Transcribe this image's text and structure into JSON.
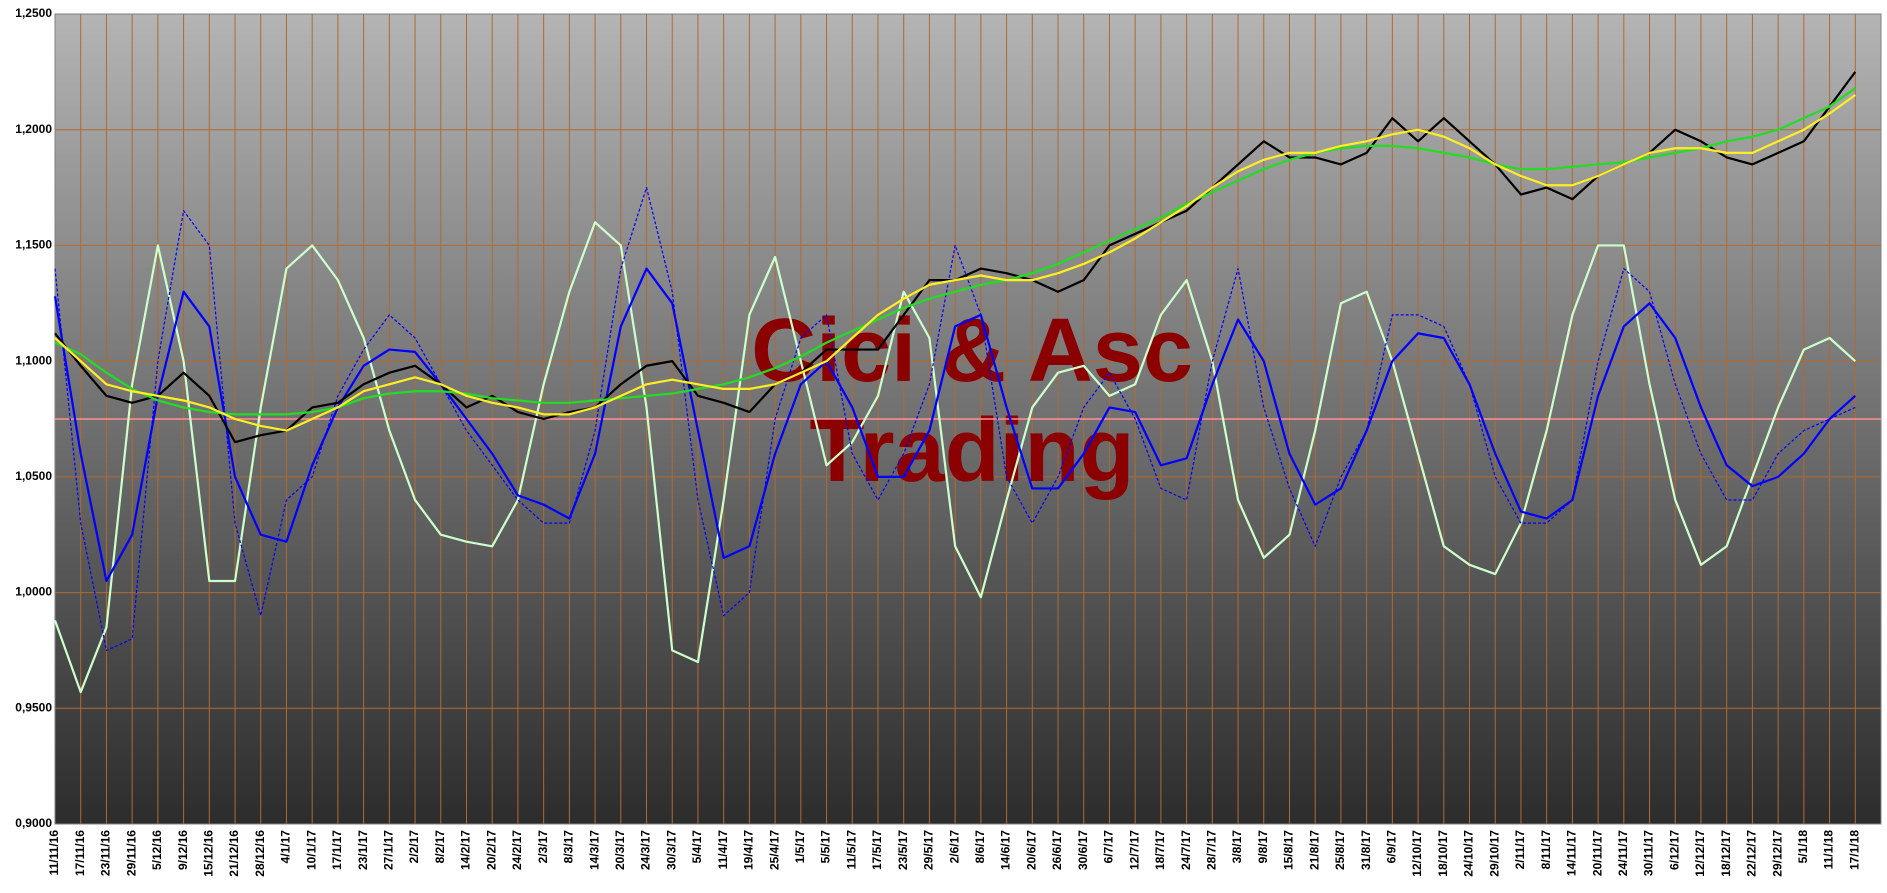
{
  "chart_data": {
    "type": "line",
    "categories": [
      "11/11/16",
      "17/11/16",
      "23/11/16",
      "29/11/16",
      "5/12/16",
      "9/12/16",
      "15/12/16",
      "21/12/16",
      "28/12/16",
      "4/1/17",
      "10/1/17",
      "17/1/17",
      "23/1/17",
      "27/1/17",
      "2/2/17",
      "8/2/17",
      "14/2/17",
      "20/2/17",
      "24/2/17",
      "2/3/17",
      "8/3/17",
      "14/3/17",
      "20/3/17",
      "24/3/17",
      "30/3/17",
      "5/4/17",
      "11/4/17",
      "19/4/17",
      "25/4/17",
      "1/5/17",
      "5/5/17",
      "11/5/17",
      "17/5/17",
      "23/5/17",
      "29/5/17",
      "2/6/17",
      "8/6/17",
      "14/6/17",
      "20/6/17",
      "26/6/17",
      "30/6/17",
      "6/7/17",
      "12/7/17",
      "18/7/17",
      "24/7/17",
      "28/7/17",
      "3/8/17",
      "9/8/17",
      "15/8/17",
      "21/8/17",
      "25/8/17",
      "31/8/17",
      "6/9/17",
      "12/10/17",
      "18/10/17",
      "24/10/17",
      "29/10/17",
      "2/11/17",
      "8/11/17",
      "14/11/17",
      "20/11/17",
      "24/11/17",
      "30/11/17",
      "6/12/17",
      "12/12/17",
      "18/12/17",
      "22/12/17",
      "29/12/17",
      "5/1/18",
      "11/1/18",
      "17/1/18"
    ],
    "ylim": [
      0.9,
      1.25
    ],
    "yticks": [
      {
        "value": 0.9,
        "label": "0,9000"
      },
      {
        "value": 0.95,
        "label": "0,9500"
      },
      {
        "value": 1.0,
        "label": "1,0000"
      },
      {
        "value": 1.05,
        "label": "1,0500"
      },
      {
        "value": 1.1,
        "label": "1,1000"
      },
      {
        "value": 1.15,
        "label": "1,1500"
      },
      {
        "value": 1.2,
        "label": "1,2000"
      },
      {
        "value": 1.25,
        "label": "1,2500"
      }
    ],
    "grid": true,
    "reference_line": {
      "value": 1.075,
      "color": "#ff9090"
    },
    "annotations": [
      "Cici & Asc",
      "Trading"
    ],
    "series": [
      {
        "color": "#ccffcc",
        "values": [
          0.988,
          0.957,
          0.985,
          1.09,
          1.15,
          1.1,
          1.005,
          1.005,
          1.08,
          1.14,
          1.15,
          1.135,
          1.11,
          1.07,
          1.04,
          1.025,
          1.022,
          1.02,
          1.04,
          1.09,
          1.13,
          1.16,
          1.15,
          1.08,
          0.975,
          0.97,
          1.04,
          1.12,
          1.145,
          1.1,
          1.055,
          1.065,
          1.085,
          1.13,
          1.11,
          1.02,
          0.998,
          1.04,
          1.08,
          1.095,
          1.098,
          1.085,
          1.09,
          1.12,
          1.135,
          1.1,
          1.04,
          1.015,
          1.025,
          1.07,
          1.125,
          1.13,
          1.1,
          1.06,
          1.02,
          1.012,
          1.008,
          1.03,
          1.07,
          1.12,
          1.15,
          1.15,
          1.09,
          1.04,
          1.012,
          1.02,
          1.05,
          1.08,
          1.105,
          1.11,
          1.1
        ]
      },
      {
        "color": "#0000ff",
        "dashed": true,
        "values": [
          1.14,
          1.03,
          0.975,
          0.98,
          1.1,
          1.165,
          1.15,
          1.03,
          0.99,
          1.04,
          1.05,
          1.085,
          1.105,
          1.12,
          1.11,
          1.09,
          1.07,
          1.055,
          1.04,
          1.03,
          1.03,
          1.07,
          1.14,
          1.175,
          1.13,
          1.04,
          0.99,
          1.0,
          1.075,
          1.11,
          1.12,
          1.06,
          1.04,
          1.06,
          1.09,
          1.15,
          1.12,
          1.05,
          1.03,
          1.05,
          1.08,
          1.095,
          1.075,
          1.045,
          1.04,
          1.1,
          1.14,
          1.08,
          1.045,
          1.02,
          1.05,
          1.07,
          1.12,
          1.12,
          1.115,
          1.09,
          1.05,
          1.03,
          1.03,
          1.04,
          1.1,
          1.14,
          1.13,
          1.09,
          1.06,
          1.04,
          1.04,
          1.06,
          1.07,
          1.075,
          1.08
        ]
      },
      {
        "color": "#0000ff",
        "values": [
          1.128,
          1.06,
          1.005,
          1.025,
          1.085,
          1.13,
          1.115,
          1.05,
          1.025,
          1.022,
          1.055,
          1.08,
          1.098,
          1.105,
          1.104,
          1.09,
          1.075,
          1.06,
          1.042,
          1.038,
          1.032,
          1.06,
          1.115,
          1.14,
          1.125,
          1.07,
          1.015,
          1.02,
          1.06,
          1.09,
          1.1,
          1.08,
          1.05,
          1.05,
          1.07,
          1.115,
          1.12,
          1.08,
          1.045,
          1.045,
          1.06,
          1.08,
          1.078,
          1.055,
          1.058,
          1.09,
          1.118,
          1.1,
          1.06,
          1.038,
          1.045,
          1.07,
          1.1,
          1.112,
          1.11,
          1.09,
          1.06,
          1.035,
          1.032,
          1.04,
          1.085,
          1.115,
          1.125,
          1.11,
          1.08,
          1.055,
          1.046,
          1.05,
          1.06,
          1.075,
          1.085
        ]
      },
      {
        "color": "#000000",
        "values": [
          1.112,
          1.098,
          1.085,
          1.082,
          1.085,
          1.095,
          1.085,
          1.065,
          1.068,
          1.07,
          1.08,
          1.082,
          1.09,
          1.095,
          1.098,
          1.09,
          1.08,
          1.085,
          1.078,
          1.075,
          1.078,
          1.08,
          1.09,
          1.098,
          1.1,
          1.085,
          1.082,
          1.078,
          1.09,
          1.095,
          1.105,
          1.105,
          1.105,
          1.12,
          1.135,
          1.135,
          1.14,
          1.138,
          1.135,
          1.13,
          1.135,
          1.15,
          1.155,
          1.16,
          1.165,
          1.175,
          1.185,
          1.195,
          1.188,
          1.188,
          1.185,
          1.19,
          1.205,
          1.195,
          1.205,
          1.195,
          1.185,
          1.172,
          1.175,
          1.17,
          1.18,
          1.185,
          1.19,
          1.2,
          1.195,
          1.188,
          1.185,
          1.19,
          1.195,
          1.21,
          1.225
        ]
      },
      {
        "color": "#22dd22",
        "values": [
          1.108,
          1.103,
          1.095,
          1.088,
          1.083,
          1.08,
          1.078,
          1.077,
          1.077,
          1.077,
          1.078,
          1.08,
          1.084,
          1.086,
          1.087,
          1.087,
          1.086,
          1.084,
          1.083,
          1.082,
          1.082,
          1.083,
          1.084,
          1.085,
          1.086,
          1.088,
          1.09,
          1.093,
          1.097,
          1.102,
          1.108,
          1.113,
          1.118,
          1.123,
          1.127,
          1.13,
          1.133,
          1.135,
          1.138,
          1.142,
          1.147,
          1.152,
          1.157,
          1.162,
          1.168,
          1.173,
          1.178,
          1.183,
          1.187,
          1.19,
          1.192,
          1.193,
          1.193,
          1.192,
          1.19,
          1.188,
          1.185,
          1.183,
          1.183,
          1.184,
          1.185,
          1.186,
          1.188,
          1.19,
          1.192,
          1.195,
          1.197,
          1.2,
          1.205,
          1.21,
          1.218
        ]
      },
      {
        "color": "#ffee22",
        "values": [
          1.11,
          1.1,
          1.09,
          1.087,
          1.085,
          1.083,
          1.08,
          1.075,
          1.072,
          1.07,
          1.075,
          1.08,
          1.087,
          1.09,
          1.093,
          1.09,
          1.085,
          1.082,
          1.08,
          1.077,
          1.077,
          1.08,
          1.085,
          1.09,
          1.092,
          1.09,
          1.088,
          1.088,
          1.09,
          1.095,
          1.1,
          1.11,
          1.12,
          1.127,
          1.133,
          1.135,
          1.137,
          1.135,
          1.135,
          1.138,
          1.142,
          1.147,
          1.153,
          1.16,
          1.167,
          1.175,
          1.182,
          1.187,
          1.19,
          1.19,
          1.193,
          1.195,
          1.198,
          1.2,
          1.197,
          1.192,
          1.185,
          1.18,
          1.176,
          1.176,
          1.18,
          1.185,
          1.19,
          1.192,
          1.192,
          1.19,
          1.19,
          1.195,
          1.2,
          1.207,
          1.215
        ]
      }
    ]
  }
}
